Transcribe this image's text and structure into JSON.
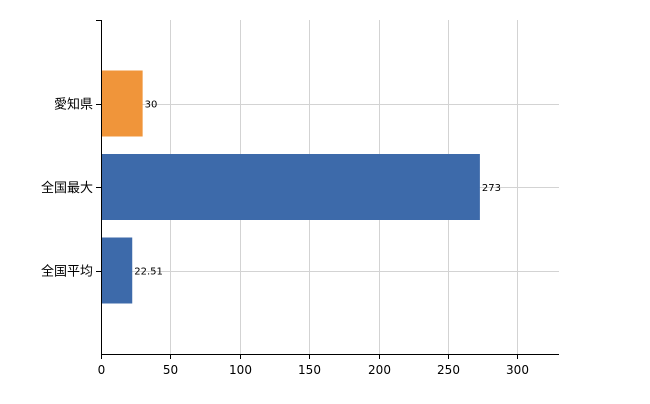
{
  "chart_data": {
    "type": "bar",
    "orientation": "horizontal",
    "categories": [
      "愛知県",
      "全国最大",
      "全国平均"
    ],
    "values": [
      30,
      273,
      22.51
    ],
    "value_labels": [
      "30",
      "273",
      "22.51"
    ],
    "bar_colors": [
      "#f0953a",
      "#3d6aaa",
      "#3d6aaa"
    ],
    "xlim": [
      0,
      330
    ],
    "xticks": [
      0,
      50,
      100,
      150,
      200,
      250,
      300
    ],
    "xtick_labels": [
      "0",
      "50",
      "100",
      "150",
      "200",
      "250",
      "300"
    ],
    "grid": true,
    "title": "",
    "xlabel": "",
    "ylabel": ""
  },
  "colors": {
    "grid": "#d3d3d3",
    "axis": "#000000"
  }
}
